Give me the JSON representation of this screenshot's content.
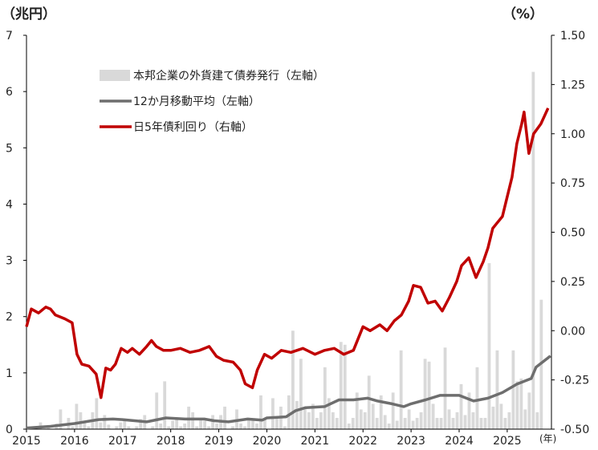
{
  "chart_data": {
    "type": "bar+line",
    "left_unit": "（兆円）",
    "right_unit": "（%）",
    "x_unit": "(年)",
    "x_start": 2015,
    "x_end": 2025.92,
    "x_ticks": [
      "2015",
      "2016",
      "2017",
      "2018",
      "2019",
      "2020",
      "2021",
      "2022",
      "2023",
      "2024",
      "2025"
    ],
    "left_axis": {
      "min": 0,
      "max": 7,
      "ticks": [
        "0",
        "1",
        "2",
        "3",
        "4",
        "5",
        "6",
        "7"
      ]
    },
    "right_axis": {
      "min": -0.5,
      "max": 1.5,
      "ticks": [
        "-0.50",
        "-0.25",
        "0.00",
        "0.25",
        "0.50",
        "0.75",
        "1.00",
        "1.25",
        "1.50"
      ]
    },
    "legend": [
      "本邦企業の外貨建て債券発行（左軸）",
      "12か月移動平均（左軸）",
      "日5年債利回り（右軸）"
    ],
    "colors": {
      "bar": "#d9d9d9",
      "moving_average": "#6e6e6e",
      "yield": "#c00000",
      "axis": "#000000"
    },
    "series": [
      {
        "name": "本邦企業の外貨建て債券発行（左軸）",
        "axis": "left",
        "values": [
          0.05,
          0.0,
          0.02,
          0.12,
          0.01,
          0.05,
          0.0,
          0.1,
          0.35,
          0.0,
          0.2,
          0.05,
          0.45,
          0.3,
          0.15,
          0.05,
          0.3,
          0.55,
          0.12,
          0.25,
          0.08,
          0.0,
          0.05,
          0.12,
          0.15,
          0.05,
          0.0,
          0.05,
          0.18,
          0.25,
          0.0,
          0.05,
          0.65,
          0.1,
          0.85,
          0.05,
          0.15,
          0.2,
          0.05,
          0.1,
          0.4,
          0.3,
          0.05,
          0.2,
          0.15,
          0.05,
          0.25,
          0.1,
          0.25,
          0.4,
          0.0,
          0.05,
          0.35,
          0.1,
          0.05,
          0.2,
          0.15,
          0.1,
          0.6,
          0.2,
          0.0,
          0.55,
          0.2,
          0.4,
          0.05,
          0.6,
          1.75,
          0.5,
          1.25,
          0.4,
          0.3,
          0.45,
          0.2,
          0.3,
          1.1,
          0.55,
          0.3,
          0.2,
          1.55,
          1.5,
          0.1,
          0.2,
          0.65,
          0.35,
          0.3,
          0.95,
          0.45,
          0.2,
          0.6,
          0.25,
          0.1,
          0.65,
          0.15,
          1.4,
          0.2,
          0.35,
          0.15,
          0.2,
          0.3,
          1.25,
          1.2,
          0.45,
          0.2,
          0.2,
          1.45,
          0.35,
          0.2,
          0.3,
          0.8,
          0.25,
          0.65,
          0.3,
          1.1,
          0.2,
          0.2,
          2.95,
          0.4,
          1.4,
          0.45,
          0.2,
          0.3,
          1.4,
          0.85,
          0.9,
          0.35,
          0.65,
          6.35,
          0.3,
          2.3
        ],
        "note": "monthly, Jan 2015 – Sep 2025"
      },
      {
        "name": "12か月移動平均（左軸）",
        "axis": "left",
        "points": [
          [
            2015.0,
            0.02
          ],
          [
            2015.5,
            0.05
          ],
          [
            2016.0,
            0.1
          ],
          [
            2016.5,
            0.17
          ],
          [
            2016.8,
            0.18
          ],
          [
            2017.0,
            0.17
          ],
          [
            2017.5,
            0.13
          ],
          [
            2017.9,
            0.2
          ],
          [
            2018.3,
            0.18
          ],
          [
            2018.7,
            0.18
          ],
          [
            2018.9,
            0.15
          ],
          [
            2019.2,
            0.13
          ],
          [
            2019.6,
            0.18
          ],
          [
            2019.9,
            0.16
          ],
          [
            2020.0,
            0.2
          ],
          [
            2020.4,
            0.22
          ],
          [
            2020.6,
            0.33
          ],
          [
            2020.8,
            0.38
          ],
          [
            2021.2,
            0.4
          ],
          [
            2021.5,
            0.52
          ],
          [
            2021.8,
            0.52
          ],
          [
            2022.1,
            0.55
          ],
          [
            2022.3,
            0.5
          ],
          [
            2022.6,
            0.45
          ],
          [
            2022.85,
            0.4
          ],
          [
            2023.0,
            0.45
          ],
          [
            2023.3,
            0.52
          ],
          [
            2023.6,
            0.6
          ],
          [
            2024.0,
            0.6
          ],
          [
            2024.3,
            0.5
          ],
          [
            2024.6,
            0.55
          ],
          [
            2024.9,
            0.65
          ],
          [
            2025.2,
            0.8
          ],
          [
            2025.5,
            0.9
          ],
          [
            2025.6,
            1.1
          ],
          [
            2025.75,
            1.2
          ],
          [
            2025.9,
            1.3
          ]
        ]
      },
      {
        "name": "日5年債利回り（右軸）",
        "axis": "right",
        "points": [
          [
            2015.0,
            0.02
          ],
          [
            2015.1,
            0.11
          ],
          [
            2015.25,
            0.09
          ],
          [
            2015.4,
            0.12
          ],
          [
            2015.5,
            0.11
          ],
          [
            2015.6,
            0.08
          ],
          [
            2015.8,
            0.06
          ],
          [
            2015.95,
            0.04
          ],
          [
            2016.05,
            -0.12
          ],
          [
            2016.15,
            -0.17
          ],
          [
            2016.3,
            -0.18
          ],
          [
            2016.45,
            -0.22
          ],
          [
            2016.55,
            -0.34
          ],
          [
            2016.65,
            -0.19
          ],
          [
            2016.75,
            -0.2
          ],
          [
            2016.85,
            -0.17
          ],
          [
            2016.97,
            -0.09
          ],
          [
            2017.1,
            -0.11
          ],
          [
            2017.2,
            -0.09
          ],
          [
            2017.35,
            -0.12
          ],
          [
            2017.5,
            -0.08
          ],
          [
            2017.6,
            -0.05
          ],
          [
            2017.7,
            -0.08
          ],
          [
            2017.85,
            -0.1
          ],
          [
            2018.0,
            -0.1
          ],
          [
            2018.2,
            -0.09
          ],
          [
            2018.4,
            -0.11
          ],
          [
            2018.6,
            -0.1
          ],
          [
            2018.8,
            -0.08
          ],
          [
            2018.95,
            -0.13
          ],
          [
            2019.1,
            -0.15
          ],
          [
            2019.3,
            -0.16
          ],
          [
            2019.45,
            -0.2
          ],
          [
            2019.55,
            -0.27
          ],
          [
            2019.7,
            -0.29
          ],
          [
            2019.8,
            -0.2
          ],
          [
            2019.95,
            -0.12
          ],
          [
            2020.1,
            -0.14
          ],
          [
            2020.3,
            -0.1
          ],
          [
            2020.5,
            -0.11
          ],
          [
            2020.75,
            -0.09
          ],
          [
            2021.0,
            -0.12
          ],
          [
            2021.2,
            -0.1
          ],
          [
            2021.4,
            -0.09
          ],
          [
            2021.6,
            -0.12
          ],
          [
            2021.8,
            -0.1
          ],
          [
            2022.0,
            0.02
          ],
          [
            2022.15,
            0.0
          ],
          [
            2022.35,
            0.03
          ],
          [
            2022.5,
            0.0
          ],
          [
            2022.65,
            0.05
          ],
          [
            2022.8,
            0.08
          ],
          [
            2022.95,
            0.15
          ],
          [
            2023.05,
            0.23
          ],
          [
            2023.2,
            0.22
          ],
          [
            2023.35,
            0.14
          ],
          [
            2023.5,
            0.15
          ],
          [
            2023.65,
            0.1
          ],
          [
            2023.8,
            0.17
          ],
          [
            2023.95,
            0.25
          ],
          [
            2024.05,
            0.33
          ],
          [
            2024.2,
            0.37
          ],
          [
            2024.35,
            0.27
          ],
          [
            2024.5,
            0.35
          ],
          [
            2024.6,
            0.42
          ],
          [
            2024.7,
            0.52
          ],
          [
            2024.8,
            0.55
          ],
          [
            2024.9,
            0.58
          ],
          [
            2025.0,
            0.68
          ],
          [
            2025.1,
            0.78
          ],
          [
            2025.2,
            0.95
          ],
          [
            2025.3,
            1.05
          ],
          [
            2025.35,
            1.11
          ],
          [
            2025.45,
            0.9
          ],
          [
            2025.55,
            1.0
          ],
          [
            2025.7,
            1.05
          ],
          [
            2025.85,
            1.13
          ]
        ]
      }
    ]
  }
}
